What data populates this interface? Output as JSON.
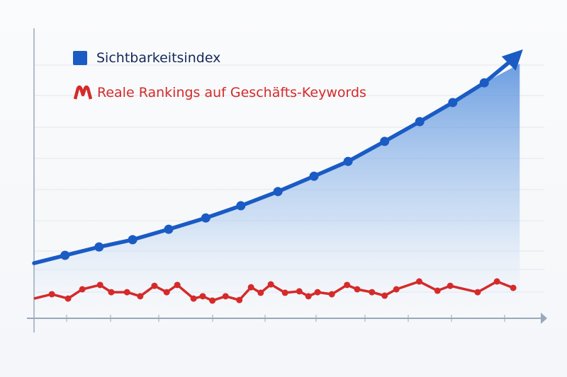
{
  "chart_data": {
    "type": "line",
    "title": "",
    "xlabel": "",
    "ylabel": "",
    "xlim": [
      0,
      100
    ],
    "ylim": [
      0,
      100
    ],
    "grid": true,
    "legend_position": "top-left",
    "series": [
      {
        "name": "Sichtbarkeitsindex",
        "color": "#1a5bc4",
        "area_fill": true,
        "arrow_end": true,
        "points": [
          [
            0,
            19
          ],
          [
            6.1,
            21.7
          ],
          [
            12.8,
            24.6
          ],
          [
            19.4,
            27.1
          ],
          [
            26.5,
            30.7
          ],
          [
            33.8,
            34.6
          ],
          [
            40.7,
            38.8
          ],
          [
            48,
            43.7
          ],
          [
            55.1,
            49
          ],
          [
            61.8,
            54.1
          ],
          [
            69,
            61
          ],
          [
            75.9,
            67.8
          ],
          [
            82.4,
            74.4
          ],
          [
            88.6,
            81.2
          ],
          [
            96.2,
            92.7
          ]
        ]
      },
      {
        "name": "Reale Rankings auf Geschäfts-Keywords",
        "color": "#d52a2a",
        "points": [
          [
            0,
            6.8
          ],
          [
            3.5,
            8.3
          ],
          [
            6.7,
            6.8
          ],
          [
            9.5,
            10
          ],
          [
            13,
            11.5
          ],
          [
            15.2,
            9
          ],
          [
            18.3,
            9
          ],
          [
            20.9,
            7.6
          ],
          [
            23.7,
            11.2
          ],
          [
            26.1,
            9
          ],
          [
            28.2,
            11.5
          ],
          [
            31.4,
            6.8
          ],
          [
            33.2,
            7.6
          ],
          [
            35.1,
            6.1
          ],
          [
            37.7,
            7.6
          ],
          [
            40.4,
            6.3
          ],
          [
            42.7,
            10.7
          ],
          [
            44.6,
            8.8
          ],
          [
            46.6,
            11.7
          ],
          [
            49.4,
            8.8
          ],
          [
            52.2,
            9.3
          ],
          [
            54,
            7.6
          ],
          [
            55.8,
            9
          ],
          [
            58.6,
            8.3
          ],
          [
            61.6,
            11.5
          ],
          [
            63.6,
            10
          ],
          [
            66.5,
            9
          ],
          [
            69,
            7.8
          ],
          [
            71.3,
            10
          ],
          [
            75.8,
            12.7
          ],
          [
            79.4,
            9.5
          ],
          [
            81.9,
            11.2
          ],
          [
            87.3,
            9
          ],
          [
            91.1,
            12.7
          ],
          [
            94.3,
            10.5
          ]
        ]
      }
    ]
  }
}
